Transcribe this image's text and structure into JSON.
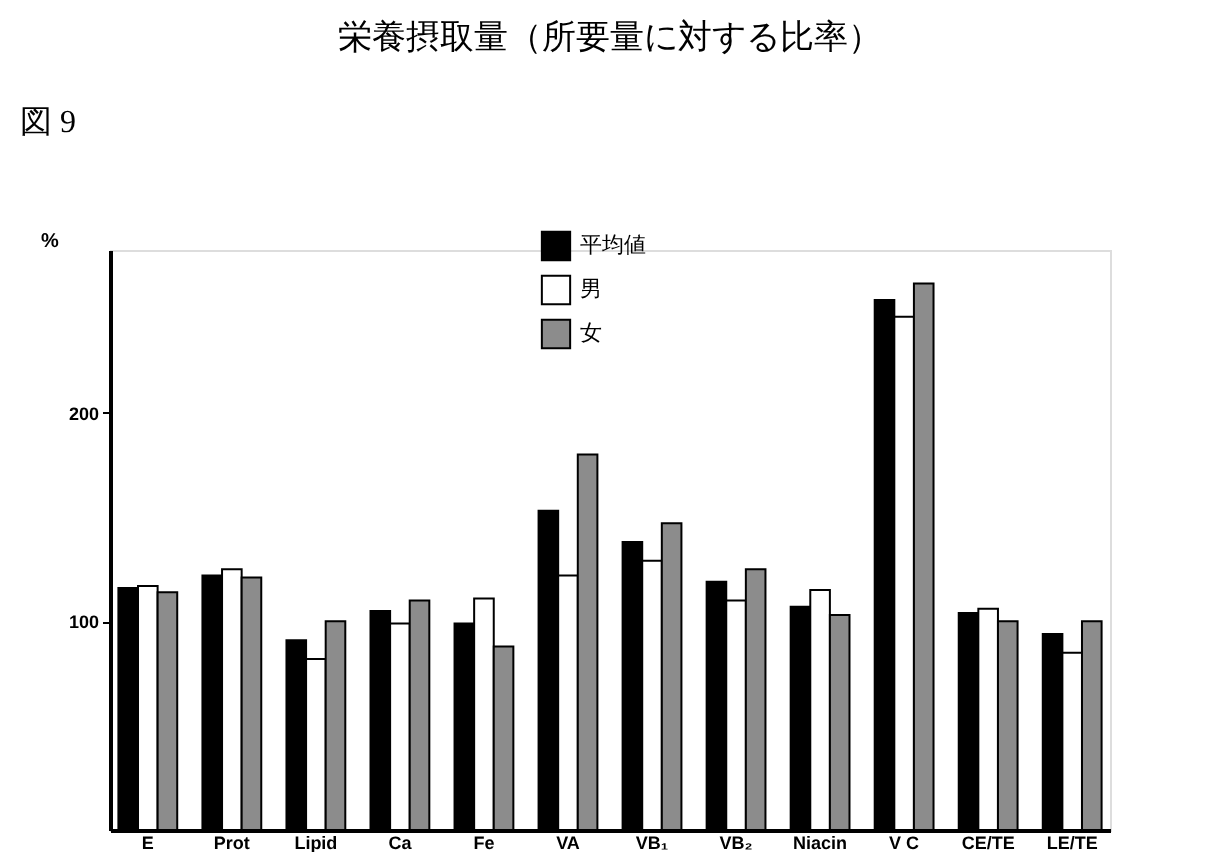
{
  "chart_data": {
    "type": "bar",
    "title": "栄養摂取量（所要量に対する比率）",
    "ylabel": "%",
    "annotations": [
      "図 9"
    ],
    "categories": [
      "E",
      "Prot",
      "Lipid",
      "Ca",
      "Fe",
      "VA",
      "VB₁",
      "VB₂",
      "Niacin",
      "V C",
      "CE/TE",
      "LE/TE"
    ],
    "series": [
      {
        "name": "平均値",
        "color": "#000000",
        "values": [
          116,
          122,
          91,
          105,
          99,
          153,
          138,
          119,
          107,
          254,
          104,
          94
        ]
      },
      {
        "name": "男",
        "color": "#ffffff",
        "values": [
          117,
          125,
          82,
          99,
          111,
          122,
          129,
          110,
          115,
          246,
          106,
          85
        ]
      },
      {
        "name": "女",
        "color": "#8c8c8c",
        "values": [
          114,
          121,
          100,
          110,
          88,
          180,
          147,
          125,
          103,
          262,
          100,
          100
        ]
      }
    ],
    "ylim": [
      0,
      278
    ],
    "yticks": [
      100,
      200
    ],
    "grid": false,
    "legend": "top"
  }
}
